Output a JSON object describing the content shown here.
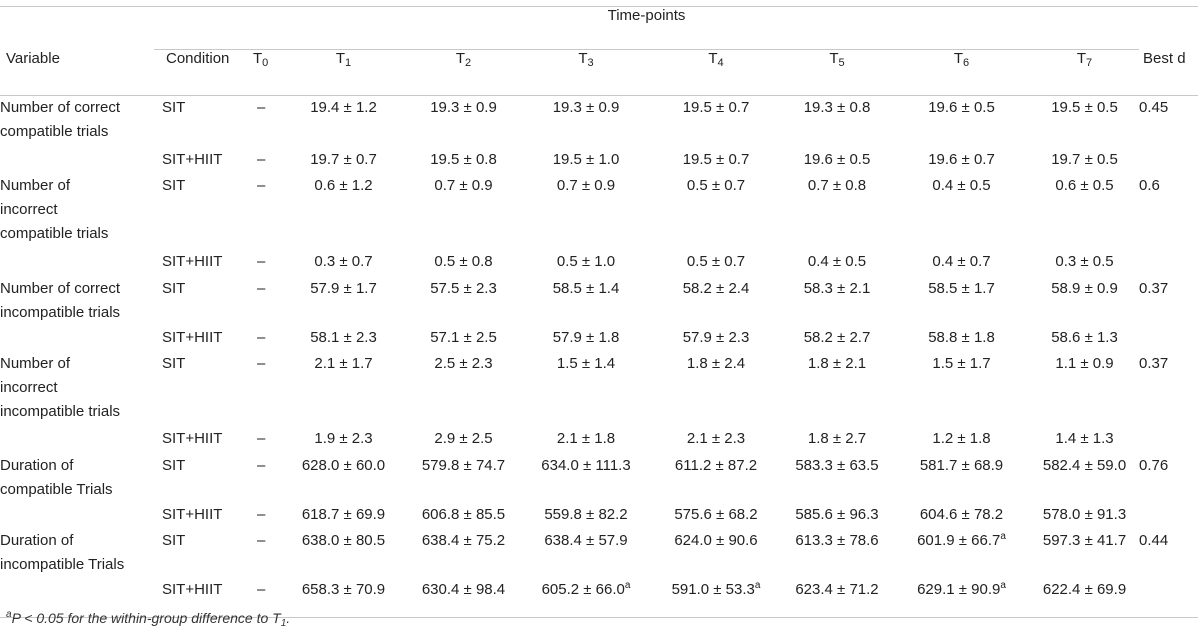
{
  "header": {
    "group_label": "Time-points",
    "variable": "Variable",
    "condition": "Condition",
    "timepoints": [
      {
        "base": "T",
        "sub": "0"
      },
      {
        "base": "T",
        "sub": "1"
      },
      {
        "base": "T",
        "sub": "2"
      },
      {
        "base": "T",
        "sub": "3"
      },
      {
        "base": "T",
        "sub": "4"
      },
      {
        "base": "T",
        "sub": "5"
      },
      {
        "base": "T",
        "sub": "6"
      },
      {
        "base": "T",
        "sub": "7"
      }
    ],
    "best_d": "Best d"
  },
  "groups": [
    {
      "variable_lines": [
        "Number of correct",
        "compatible trials"
      ],
      "best_d": "0.45",
      "rows": [
        {
          "condition": "SIT",
          "values": [
            {
              "v": "–"
            },
            {
              "v": "19.4 ± 1.2"
            },
            {
              "v": "19.3 ± 0.9"
            },
            {
              "v": "19.3 ± 0.9"
            },
            {
              "v": "19.5 ± 0.7"
            },
            {
              "v": "19.3 ± 0.8"
            },
            {
              "v": "19.6 ± 0.5"
            },
            {
              "v": "19.5 ± 0.5"
            }
          ]
        },
        {
          "condition": "SIT+HIIT",
          "values": [
            {
              "v": "–"
            },
            {
              "v": "19.7 ± 0.7"
            },
            {
              "v": "19.5 ± 0.8"
            },
            {
              "v": "19.5 ± 1.0"
            },
            {
              "v": "19.5 ± 0.7"
            },
            {
              "v": "19.6 ± 0.5"
            },
            {
              "v": "19.6 ± 0.7"
            },
            {
              "v": "19.7 ± 0.5"
            }
          ]
        }
      ]
    },
    {
      "variable_lines": [
        "Number of",
        "incorrect",
        "compatible trials"
      ],
      "best_d": "0.6",
      "rows": [
        {
          "condition": "SIT",
          "values": [
            {
              "v": "–"
            },
            {
              "v": "0.6 ± 1.2"
            },
            {
              "v": "0.7 ± 0.9"
            },
            {
              "v": "0.7 ± 0.9"
            },
            {
              "v": "0.5 ± 0.7"
            },
            {
              "v": "0.7 ± 0.8"
            },
            {
              "v": "0.4 ± 0.5"
            },
            {
              "v": "0.6 ± 0.5"
            }
          ]
        },
        {
          "condition": "SIT+HIIT",
          "values": [
            {
              "v": "–"
            },
            {
              "v": "0.3 ± 0.7"
            },
            {
              "v": "0.5 ± 0.8"
            },
            {
              "v": "0.5 ± 1.0"
            },
            {
              "v": "0.5 ± 0.7"
            },
            {
              "v": "0.4 ± 0.5"
            },
            {
              "v": "0.4 ± 0.7"
            },
            {
              "v": "0.3 ± 0.5"
            }
          ]
        }
      ]
    },
    {
      "variable_lines": [
        "Number of correct",
        "incompatible trials"
      ],
      "best_d": "0.37",
      "rows": [
        {
          "condition": "SIT",
          "values": [
            {
              "v": "–"
            },
            {
              "v": "57.9 ± 1.7"
            },
            {
              "v": "57.5 ± 2.3"
            },
            {
              "v": "58.5 ± 1.4"
            },
            {
              "v": "58.2 ± 2.4"
            },
            {
              "v": "58.3 ± 2.1"
            },
            {
              "v": "58.5 ± 1.7"
            },
            {
              "v": "58.9 ± 0.9"
            }
          ]
        },
        {
          "condition": "SIT+HIIT",
          "values": [
            {
              "v": "–"
            },
            {
              "v": "58.1 ± 2.3"
            },
            {
              "v": "57.1 ± 2.5"
            },
            {
              "v": "57.9 ± 1.8"
            },
            {
              "v": "57.9 ± 2.3"
            },
            {
              "v": "58.2 ± 2.7"
            },
            {
              "v": "58.8 ± 1.8"
            },
            {
              "v": "58.6 ± 1.3"
            }
          ]
        }
      ]
    },
    {
      "variable_lines": [
        "Number of",
        "incorrect",
        "incompatible trials"
      ],
      "best_d": "0.37",
      "rows": [
        {
          "condition": "SIT",
          "values": [
            {
              "v": "–"
            },
            {
              "v": "2.1 ± 1.7"
            },
            {
              "v": "2.5 ± 2.3"
            },
            {
              "v": "1.5 ± 1.4"
            },
            {
              "v": "1.8 ± 2.4"
            },
            {
              "v": "1.8 ± 2.1"
            },
            {
              "v": "1.5 ± 1.7"
            },
            {
              "v": "1.1 ± 0.9"
            }
          ]
        },
        {
          "condition": "SIT+HIIT",
          "values": [
            {
              "v": "–"
            },
            {
              "v": "1.9 ± 2.3"
            },
            {
              "v": "2.9 ± 2.5"
            },
            {
              "v": "2.1 ± 1.8"
            },
            {
              "v": "2.1 ± 2.3"
            },
            {
              "v": "1.8 ± 2.7"
            },
            {
              "v": "1.2 ± 1.8"
            },
            {
              "v": "1.4 ± 1.3"
            }
          ]
        }
      ]
    },
    {
      "variable_lines": [
        "Duration of",
        "compatible Trials"
      ],
      "best_d": "0.76",
      "rows": [
        {
          "condition": "SIT",
          "values": [
            {
              "v": "–"
            },
            {
              "v": "628.0 ± 60.0"
            },
            {
              "v": "579.8 ± 74.7"
            },
            {
              "v": "634.0 ± 111.3"
            },
            {
              "v": "611.2 ± 87.2"
            },
            {
              "v": "583.3 ± 63.5"
            },
            {
              "v": "581.7 ± 68.9"
            },
            {
              "v": "582.4 ± 59.0"
            }
          ]
        },
        {
          "condition": "SIT+HIIT",
          "values": [
            {
              "v": "–"
            },
            {
              "v": "618.7 ± 69.9"
            },
            {
              "v": "606.8 ± 85.5"
            },
            {
              "v": "559.8 ± 82.2"
            },
            {
              "v": "575.6 ± 68.2"
            },
            {
              "v": "585.6 ± 96.3"
            },
            {
              "v": "604.6 ± 78.2"
            },
            {
              "v": "578.0 ± 91.3"
            }
          ]
        }
      ]
    },
    {
      "variable_lines": [
        "Duration of",
        "incompatible Trials"
      ],
      "best_d": "0.44",
      "rows": [
        {
          "condition": "SIT",
          "values": [
            {
              "v": "–"
            },
            {
              "v": "638.0 ± 80.5"
            },
            {
              "v": "638.4 ± 75.2"
            },
            {
              "v": "638.4 ± 57.9"
            },
            {
              "v": "624.0 ± 90.6"
            },
            {
              "v": "613.3 ± 78.6"
            },
            {
              "v": "601.9 ± 66.7",
              "sup": "a"
            },
            {
              "v": "597.3 ± 41.7"
            }
          ]
        },
        {
          "condition": "SIT+HIIT",
          "values": [
            {
              "v": "–"
            },
            {
              "v": "658.3 ± 70.9"
            },
            {
              "v": "630.4 ± 98.4"
            },
            {
              "v": "605.2 ± 66.0",
              "sup": "a"
            },
            {
              "v": "591.0 ± 53.3",
              "sup": "a"
            },
            {
              "v": "623.4 ± 71.2"
            },
            {
              "v": "629.1 ± 90.9",
              "sup": "a"
            },
            {
              "v": "622.4 ± 69.9"
            }
          ]
        }
      ]
    }
  ],
  "footnote": {
    "marker": "a",
    "text_before": "P < 0.05 for the within-group difference to T",
    "sub": "1",
    "text_after": "."
  }
}
